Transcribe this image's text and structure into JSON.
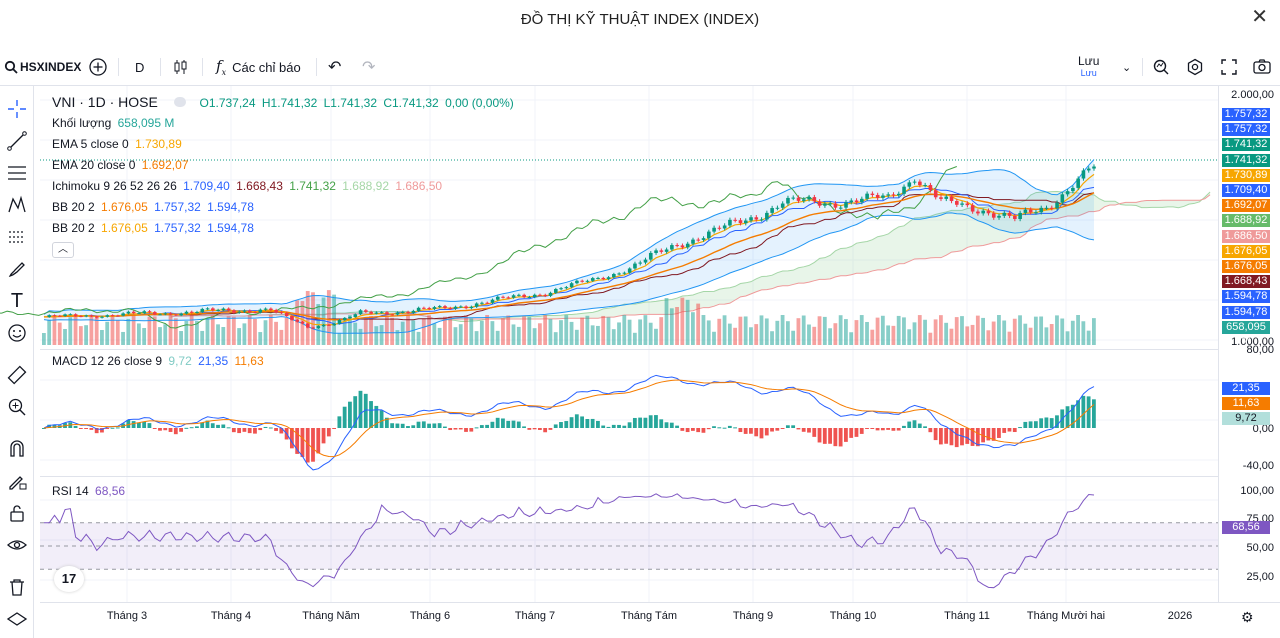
{
  "window": {
    "title": "ĐỒ THỊ KỸ THUẬT INDEX (INDEX)",
    "close_icon": "close-icon"
  },
  "toolbar": {
    "symbol": "HSXINDEX",
    "interval": "D",
    "indicators_label": "Các chỉ báo",
    "save_label": "Lưu",
    "save_sub": "Lưu"
  },
  "legend": {
    "title": "VNI · 1D · HOSE",
    "ohlc": {
      "o": "O1.737,24",
      "h": "H1.741,32",
      "l": "L1.741,32",
      "c": "C1.741,32",
      "chg": "0,00 (0,00%)"
    },
    "volume": {
      "label": "Khối lượng",
      "value": "658,095 M"
    },
    "ema5": {
      "label": "EMA 5 close 0",
      "value": "1.730,89"
    },
    "ema20": {
      "label": "EMA 20 close 0",
      "value": "1.692,07"
    },
    "ichimoku": {
      "label": "Ichimoku 9 26 52 26 26",
      "v1": "1.709,40",
      "v2": "1.668,43",
      "v3": "1.741,32",
      "v4": "1.688,92",
      "v5": "1.686,50"
    },
    "bb1": {
      "label": "BB 20 2",
      "v1": "1.676,05",
      "v2": "1.757,32",
      "v3": "1.594,78"
    },
    "bb2": {
      "label": "BB 20 2",
      "v1": "1.676,05",
      "v2": "1.757,32",
      "v3": "1.594,78"
    },
    "macd": {
      "label": "MACD 12 26 close 9",
      "v1": "9,72",
      "v2": "21,35",
      "v3": "11,63"
    },
    "rsi": {
      "label": "RSI 14",
      "v1": "68,56"
    }
  },
  "price_axis": {
    "top": "2.000,00",
    "bottom": "1.000,00"
  },
  "price_tags": [
    {
      "text": "1.757,32",
      "color": "#2962ff"
    },
    {
      "text": "1.757,32",
      "color": "#2962ff"
    },
    {
      "text": "1.741,32",
      "color": "#089981"
    },
    {
      "text": "1.741,32",
      "color": "#089981"
    },
    {
      "text": "1.730,89",
      "color": "#f7a600"
    },
    {
      "text": "1.709,40",
      "color": "#2962ff"
    },
    {
      "text": "1.692,07",
      "color": "#f57c00"
    },
    {
      "text": "1.688,92",
      "color": "#66bb6a"
    },
    {
      "text": "1.686,50",
      "color": "#ef9a9a"
    },
    {
      "text": "1.676,05",
      "color": "#f7a600"
    },
    {
      "text": "1.676,05",
      "color": "#f57c00"
    },
    {
      "text": "1.668,43",
      "color": "#801922"
    },
    {
      "text": "1.594,78",
      "color": "#2962ff"
    },
    {
      "text": "1.594,78",
      "color": "#2962ff"
    },
    {
      "text": "658,095 M",
      "color": "#26a69a"
    }
  ],
  "macd_axis": {
    "top": "80,00",
    "mid": "0,00",
    "bottom": "-40,00"
  },
  "macd_tags": [
    {
      "text": "21,35",
      "color": "#2962ff"
    },
    {
      "text": "11,63",
      "color": "#f57c00"
    },
    {
      "text": "9,72",
      "color": "#b2dfdb",
      "dark": true
    }
  ],
  "rsi_axis": {
    "t100": "100,00",
    "t75": "75,00",
    "t50": "50,00",
    "t25": "25,00"
  },
  "rsi_tag": {
    "text": "68,56",
    "color": "#7e57c2"
  },
  "x_labels": [
    "Tháng 3",
    "Tháng 4",
    "Tháng Năm",
    "Tháng 6",
    "Tháng 7",
    "Tháng Tám",
    "Tháng 9",
    "Tháng 10",
    "Tháng 11",
    "Tháng Mười hai",
    "2026"
  ],
  "chart_data": {
    "type": "line",
    "title": "VNI · 1D · HOSE",
    "x": [
      "Tháng 3",
      "Tháng 4",
      "Tháng Năm",
      "Tháng 6",
      "Tháng 7",
      "Tháng Tám",
      "Tháng 9",
      "Tháng 10",
      "Tháng 11",
      "Tháng Mười hai"
    ],
    "series": [
      {
        "name": "VNI",
        "values": [
          1310,
          1320,
          1230,
          1320,
          1390,
          1560,
          1650,
          1700,
          1620,
          1700
        ]
      },
      {
        "name": "MACD",
        "values": [
          5,
          10,
          -20,
          15,
          10,
          30,
          35,
          0,
          -10,
          21.35
        ]
      },
      {
        "name": "RSI 14",
        "values": [
          62,
          68,
          20,
          50,
          65,
          78,
          60,
          65,
          45,
          68.56
        ]
      }
    ],
    "ylim": [
      1000,
      2000
    ],
    "last_close": 1741.32
  }
}
